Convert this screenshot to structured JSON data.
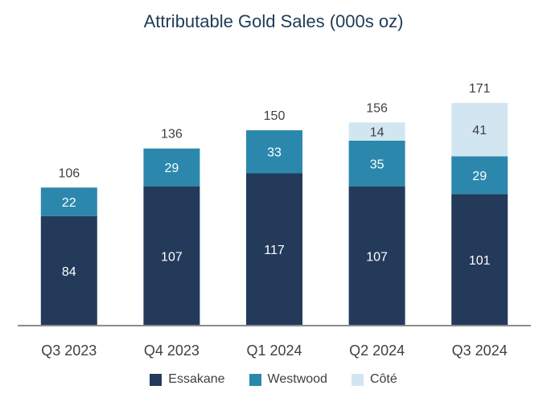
{
  "chart_data": {
    "type": "bar",
    "stacked": true,
    "title": "Attributable Gold Sales (000s oz)",
    "categories": [
      "Q3 2023",
      "Q4 2023",
      "Q1 2024",
      "Q2 2024",
      "Q3 2024"
    ],
    "series": [
      {
        "name": "Essakane",
        "color": "#243a5b",
        "values": [
          84,
          107,
          117,
          107,
          101
        ]
      },
      {
        "name": "Westwood",
        "color": "#2b88ac",
        "values": [
          22,
          29,
          33,
          35,
          29
        ]
      },
      {
        "name": "Côté",
        "color": "#d2e6f1",
        "values": [
          null,
          null,
          null,
          14,
          41
        ]
      }
    ],
    "totals": [
      "106",
      "136",
      "150",
      "156",
      "171"
    ],
    "ylim": [
      0,
      171
    ],
    "grid": false,
    "legend_position": "bottom"
  }
}
